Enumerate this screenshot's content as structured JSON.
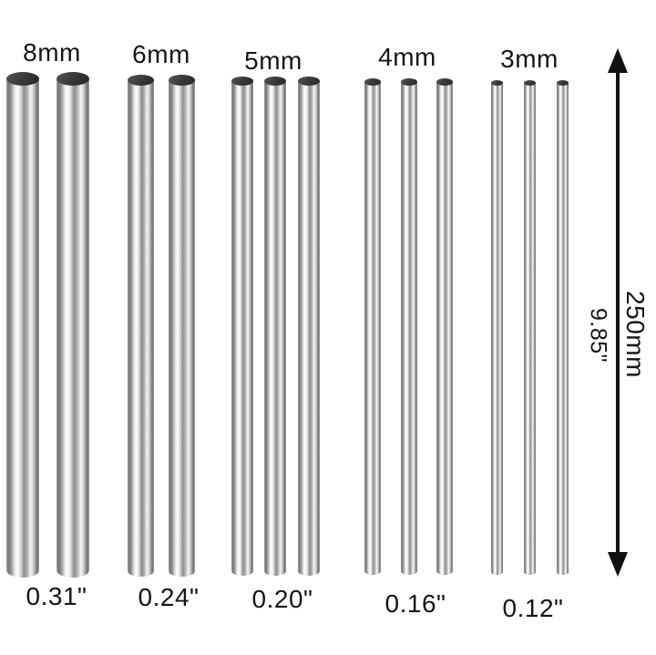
{
  "diagram": {
    "groups": [
      {
        "diameter_label": "8mm",
        "inch_label": "0.31\"",
        "rod_count": 2
      },
      {
        "diameter_label": "6mm",
        "inch_label": "0.24\"",
        "rod_count": 2
      },
      {
        "diameter_label": "5mm",
        "inch_label": "0.20\"",
        "rod_count": 3
      },
      {
        "diameter_label": "4mm",
        "inch_label": "0.16\"",
        "rod_count": 3
      },
      {
        "diameter_label": "3mm",
        "inch_label": "0.12\"",
        "rod_count": 3
      }
    ],
    "dimension": {
      "length_mm": "250mm",
      "length_inch": "9.85\""
    },
    "colors": {
      "background": "#ffffff",
      "label_text": "#151515",
      "arrow": "#111111",
      "rod_top_face": "#3c3c3c"
    }
  }
}
